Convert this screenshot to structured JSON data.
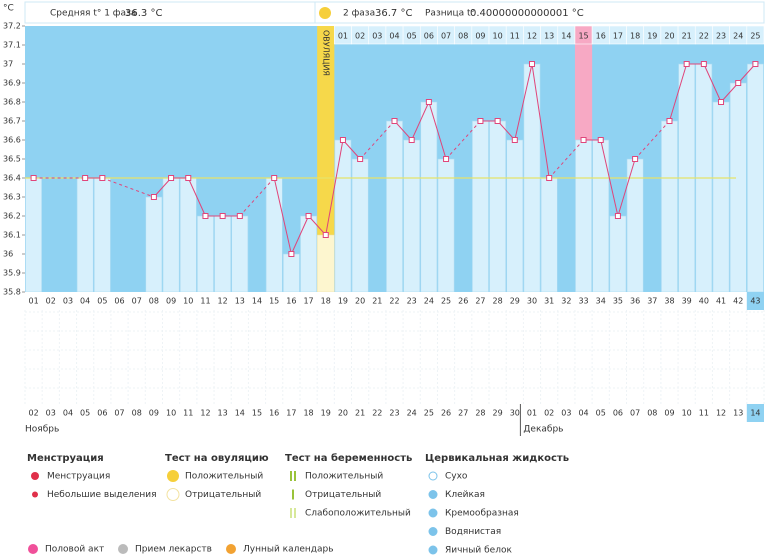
{
  "header": {
    "unit": "°C",
    "phase1_label": "Средняя t° 1 фаза",
    "phase1_value": "36.3 °C",
    "phase2_label": "2 фаза",
    "phase2_value": "36.7 °C",
    "diff_label": "Разница t°",
    "diff_value": "0.40000000000001 °C"
  },
  "chart_data": {
    "type": "line",
    "categories": [
      "01",
      "02",
      "03",
      "04",
      "05",
      "06",
      "07",
      "08",
      "09",
      "10",
      "11",
      "12",
      "13",
      "14",
      "15",
      "16",
      "17",
      "18",
      "19",
      "20",
      "21",
      "22",
      "23",
      "24",
      "25",
      "26",
      "27",
      "28",
      "29",
      "30",
      "31",
      "32",
      "33",
      "34",
      "35",
      "36",
      "37",
      "38",
      "39",
      "40",
      "41",
      "42",
      "43"
    ],
    "values": [
      36.4,
      null,
      null,
      36.4,
      36.4,
      null,
      null,
      36.3,
      36.4,
      36.4,
      36.2,
      36.2,
      36.2,
      null,
      36.4,
      36.0,
      36.2,
      36.1,
      36.6,
      36.5,
      null,
      36.7,
      36.6,
      36.8,
      36.5,
      null,
      36.7,
      36.7,
      36.6,
      37.0,
      36.4,
      null,
      36.6,
      36.6,
      36.2,
      36.5,
      null,
      36.7,
      37.0,
      37.0,
      36.8,
      36.9,
      37.0
    ],
    "color": "#e0457a",
    "ylim": [
      35.8,
      37.2
    ],
    "yticks": [
      37.2,
      37.1,
      37,
      36.9,
      36.8,
      36.7,
      36.6,
      36.5,
      36.4,
      36.3,
      36.2,
      36.1,
      36,
      35.9,
      35.8
    ],
    "coverline": 36.4,
    "ovulation_label": "ОВУЛЯЦИЯ",
    "ovulation_day": "18",
    "phase2_days": [
      null,
      null,
      null,
      null,
      null,
      null,
      null,
      null,
      null,
      null,
      null,
      null,
      null,
      null,
      null,
      null,
      null,
      null,
      "01",
      "02",
      "03",
      "04",
      "05",
      "06",
      "07",
      "08",
      "09",
      "10",
      "11",
      "12",
      "13",
      "14",
      "15",
      "16",
      "17",
      "18",
      "19",
      "20",
      "21",
      "22",
      "23",
      "24",
      "25"
    ],
    "highlight_phase2_day": "15",
    "dates": [
      "02",
      "03",
      "04",
      "05",
      "06",
      "07",
      "08",
      "09",
      "10",
      "11",
      "12",
      "13",
      "14",
      "15",
      "16",
      "17",
      "18",
      "19",
      "20",
      "21",
      "22",
      "23",
      "24",
      "25",
      "26",
      "27",
      "28",
      "29",
      "30",
      "01",
      "02",
      "03",
      "04",
      "05",
      "06",
      "07",
      "08",
      "09",
      "10",
      "11",
      "12",
      "13",
      "14"
    ],
    "weekends": [
      true,
      true,
      false,
      false,
      false,
      false,
      false,
      true,
      true,
      false,
      false,
      false,
      false,
      false,
      true,
      true,
      false,
      false,
      false,
      false,
      false,
      true,
      true,
      false,
      false,
      false,
      false,
      false,
      true,
      true,
      false,
      false,
      false,
      false,
      false,
      true,
      true,
      false,
      false,
      false,
      false,
      false,
      false
    ],
    "months": [
      "Ноябрь",
      "Декабрь"
    ]
  },
  "legend": {
    "sections": [
      {
        "title": "Менструация",
        "items": [
          "Менструация",
          "Небольшие выделения"
        ]
      },
      {
        "title": "Тест на овуляцию",
        "items": [
          "Положительный",
          "Отрицательный"
        ]
      },
      {
        "title": "Тест на беременность",
        "items": [
          "Положительный",
          "Отрицательный",
          "Слабоположительный"
        ]
      },
      {
        "title": "Цервикальная жидкость",
        "items": [
          "Сухо",
          "Клейкая",
          "Кремообразная",
          "Водянистая",
          "Яичный белок"
        ]
      }
    ],
    "bottom": [
      "Половой акт",
      "Прием лекарств",
      "Лунный календарь"
    ]
  }
}
